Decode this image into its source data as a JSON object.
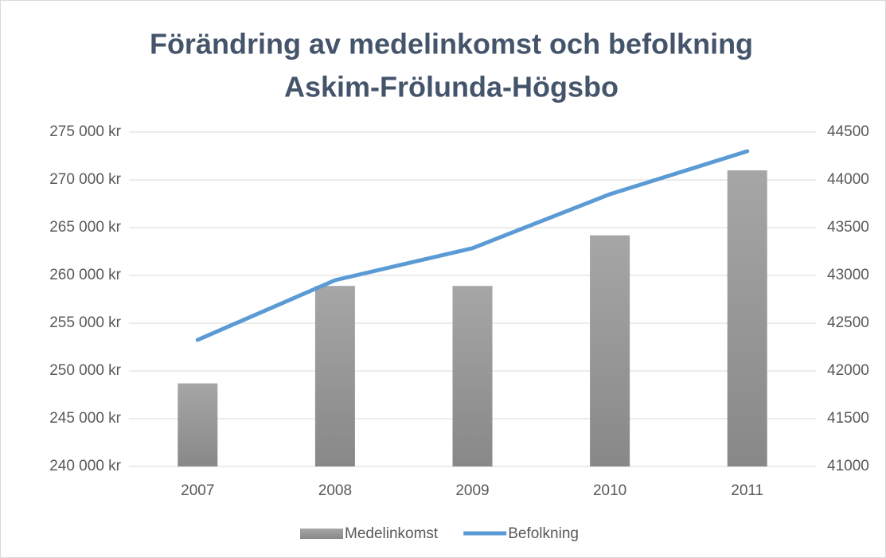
{
  "chart_data": {
    "type": "bar_line",
    "title": "Förändring av medelinkomst och befolkning",
    "subtitle": "Askim-Frölunda-Högsbo",
    "categories": [
      "2007",
      "2008",
      "2009",
      "2010",
      "2011"
    ],
    "series": [
      {
        "name": "Medelinkomst",
        "type": "bar",
        "color": "#a6a6a6",
        "values": [
          248700,
          258900,
          258900,
          264200,
          271000
        ]
      },
      {
        "name": "Befolkning",
        "type": "line",
        "axis": "y2",
        "color": "#5b9bd5",
        "values": [
          42325,
          42950,
          43285,
          43850,
          44300
        ]
      }
    ],
    "ylim": [
      240000,
      275000
    ],
    "yticks": [
      {
        "value": 240000,
        "label": "240 000 kr"
      },
      {
        "value": 245000,
        "label": "245 000 kr"
      },
      {
        "value": 250000,
        "label": "250 000 kr"
      },
      {
        "value": 255000,
        "label": "255 000 kr"
      },
      {
        "value": 260000,
        "label": "260 000 kr"
      },
      {
        "value": 265000,
        "label": "265 000 kr"
      },
      {
        "value": 270000,
        "label": "270 000 kr"
      },
      {
        "value": 275000,
        "label": "275 000 kr"
      }
    ],
    "y2lim": [
      41000,
      44500
    ],
    "y2ticks": [
      41000,
      41500,
      42000,
      42500,
      43000,
      43500,
      44000,
      44500
    ],
    "grid": true,
    "legend": "bottom"
  }
}
